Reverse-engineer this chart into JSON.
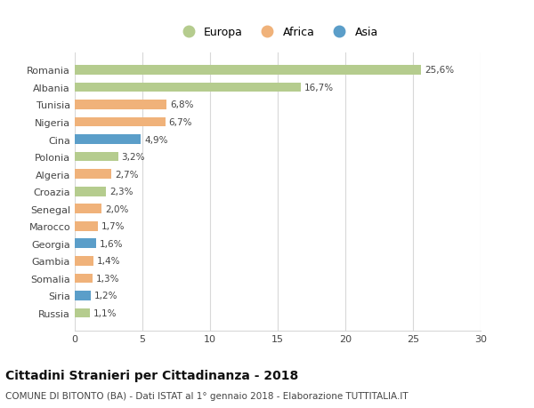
{
  "countries": [
    "Romania",
    "Albania",
    "Tunisia",
    "Nigeria",
    "Cina",
    "Polonia",
    "Algeria",
    "Croazia",
    "Senegal",
    "Marocco",
    "Georgia",
    "Gambia",
    "Somalia",
    "Siria",
    "Russia"
  ],
  "values": [
    25.6,
    16.7,
    6.8,
    6.7,
    4.9,
    3.2,
    2.7,
    2.3,
    2.0,
    1.7,
    1.6,
    1.4,
    1.3,
    1.2,
    1.1
  ],
  "labels": [
    "25,6%",
    "16,7%",
    "6,8%",
    "6,7%",
    "4,9%",
    "3,2%",
    "2,7%",
    "2,3%",
    "2,0%",
    "1,7%",
    "1,6%",
    "1,4%",
    "1,3%",
    "1,2%",
    "1,1%"
  ],
  "continent": [
    "Europa",
    "Europa",
    "Africa",
    "Africa",
    "Asia",
    "Europa",
    "Africa",
    "Europa",
    "Africa",
    "Africa",
    "Asia",
    "Africa",
    "Africa",
    "Asia",
    "Europa"
  ],
  "colors": {
    "Europa": "#b5cc8e",
    "Africa": "#f0b27a",
    "Asia": "#5b9ec9"
  },
  "xlim": [
    0,
    30
  ],
  "xticks": [
    0,
    5,
    10,
    15,
    20,
    25,
    30
  ],
  "title": "Cittadini Stranieri per Cittadinanza - 2018",
  "subtitle": "COMUNE DI BITONTO (BA) - Dati ISTAT al 1° gennaio 2018 - Elaborazione TUTTITALIA.IT",
  "background_color": "#ffffff",
  "grid_color": "#d8d8d8",
  "bar_height": 0.55,
  "title_fontsize": 10,
  "subtitle_fontsize": 7.5,
  "label_fontsize": 7.5,
  "tick_fontsize": 8,
  "legend_fontsize": 9
}
